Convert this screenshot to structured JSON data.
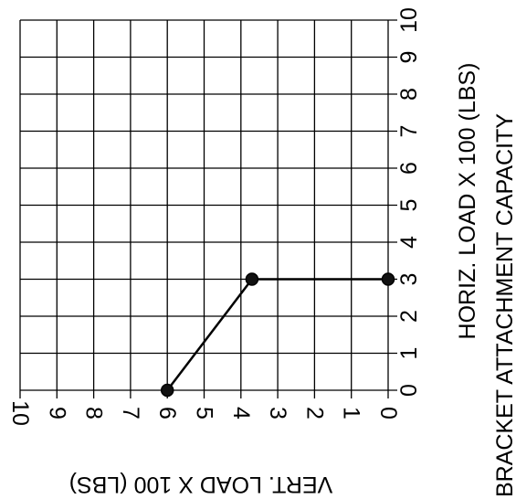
{
  "chart_data": {
    "type": "line",
    "title": "BRACKET ATTACHMENT CAPACITY",
    "xlabel": "VERT. LOAD X 100 (LBS)",
    "ylabel": "HORIZ. LOAD X 100 (LBS)",
    "xlim": [
      0,
      10
    ],
    "ylim": [
      0,
      10
    ],
    "x_ticks": [
      "0",
      "1",
      "2",
      "3",
      "4",
      "5",
      "6",
      "7",
      "8",
      "9",
      "10"
    ],
    "y_ticks": [
      "0",
      "1",
      "2",
      "3",
      "4",
      "5",
      "6",
      "7",
      "8",
      "9",
      "10"
    ],
    "grid": true,
    "orientation": "rotated-90-clockwise",
    "series": [
      {
        "points": [
          {
            "x": 0,
            "y": 3
          },
          {
            "x": 3.7,
            "y": 3
          },
          {
            "x": 6,
            "y": 0
          }
        ]
      }
    ]
  }
}
